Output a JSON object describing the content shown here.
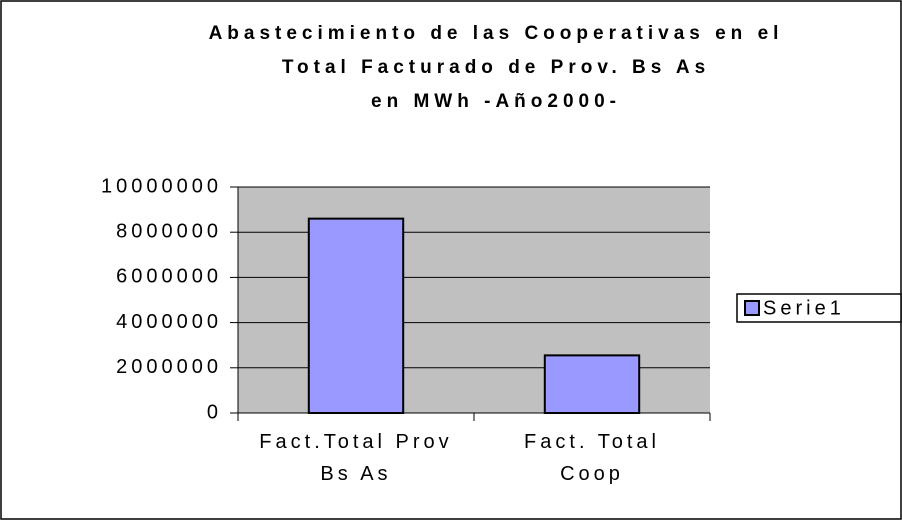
{
  "chart_data": {
    "type": "bar",
    "title": [
      "Abastecimiento de las Cooperativas en el",
      "Total Facturado de Prov. Bs As",
      "en MWh -Año2000-"
    ],
    "categories": [
      "Fact.Total Prov Bs As",
      "Fact. Total Coop"
    ],
    "series": [
      {
        "name": "Serie1",
        "color": "#9999ff",
        "values": [
          8600000,
          2550000
        ]
      }
    ],
    "ylim": [
      0,
      10000000
    ],
    "yticks": [
      0,
      2000000,
      4000000,
      6000000,
      8000000,
      10000000
    ],
    "grid": true,
    "legend": "right"
  }
}
